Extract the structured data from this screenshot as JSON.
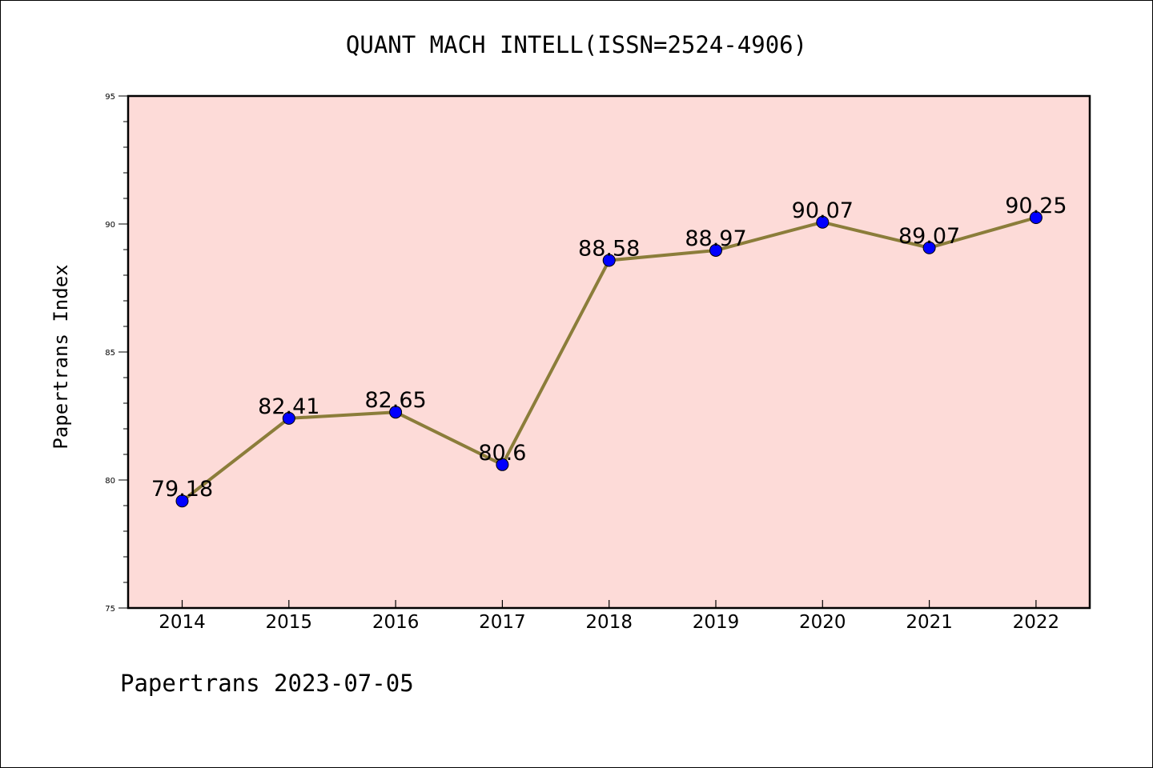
{
  "chart_data": {
    "type": "line",
    "title": "QUANT MACH INTELL(ISSN=2524-4906)",
    "ylabel": "Papertrans Index",
    "xlabel": "",
    "footer": "Papertrans 2023-07-05",
    "categories": [
      "2014",
      "2015",
      "2016",
      "2017",
      "2018",
      "2019",
      "2020",
      "2021",
      "2022"
    ],
    "values": [
      79.18,
      82.41,
      82.65,
      80.6,
      88.58,
      88.97,
      90.07,
      89.07,
      90.25
    ],
    "value_labels": [
      "79.18",
      "82.41",
      "82.65",
      "80.6",
      "88.58",
      "88.97",
      "90.07",
      "89.07",
      "90.25"
    ],
    "ylim": [
      75,
      95
    ],
    "yticks": [
      "75",
      "80",
      "85",
      "90",
      "95"
    ],
    "grid": false,
    "colors": {
      "plot_background": "#fddbd8",
      "line": "#8b7d3a",
      "marker": "#0000ff"
    }
  }
}
